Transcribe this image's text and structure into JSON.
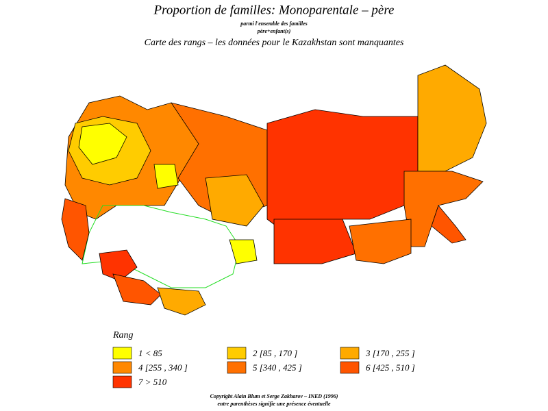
{
  "header": {
    "title": "Proportion de familles: Monoparentale – père",
    "subtitle_1": "parmi l'ensemble des familles",
    "subtitle_2": "père+enfant(s)",
    "subtitle_3": "Carte des rangs – les données pour le Kazakhstan sont manquantes"
  },
  "legend": {
    "title": "Rang",
    "items": [
      {
        "label": "1  <  85",
        "color": "#ffff00"
      },
      {
        "label": "2  [85  ,  170  ]",
        "color": "#ffcc00"
      },
      {
        "label": "3  [170  ,  255  ]",
        "color": "#ffaa00"
      },
      {
        "label": "4  [255  ,  340  ]",
        "color": "#ff8800"
      },
      {
        "label": "5  [340  ,  425  ]",
        "color": "#ff7000"
      },
      {
        "label": "6  [425  ,  510  ]",
        "color": "#ff5500"
      },
      {
        "label": "7  >  510",
        "color": "#ff3300"
      }
    ]
  },
  "footer": {
    "line_1": "Copyright Alain Blum et Serge Zakharov – INED (1996)",
    "line_2": "entre parenthèses signifie une présence éventuelle"
  }
}
